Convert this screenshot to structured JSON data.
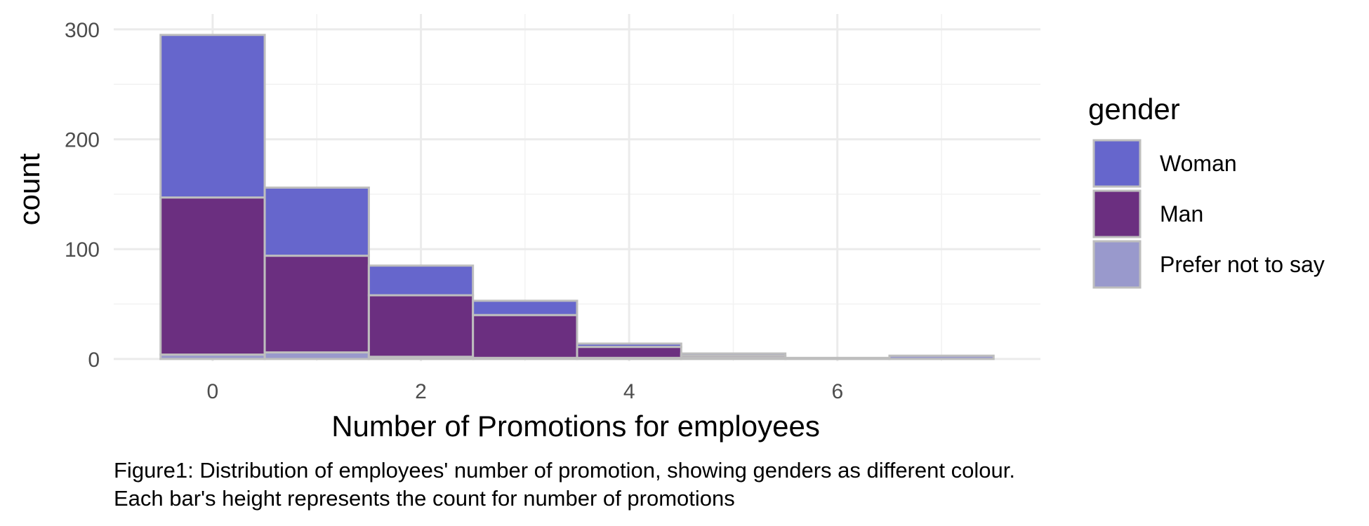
{
  "chart_data": {
    "type": "bar",
    "stacked": true,
    "x": [
      0,
      1,
      2,
      3,
      4,
      5,
      6,
      7
    ],
    "series": [
      {
        "name": "Prefer not to say",
        "color": "#9999cc",
        "values": [
          4,
          6,
          2,
          1,
          1,
          1,
          1,
          3
        ]
      },
      {
        "name": "Man",
        "color": "#6b2f80",
        "values": [
          143,
          88,
          56,
          39,
          10,
          2,
          0,
          0
        ]
      },
      {
        "name": "Woman",
        "color": "#6666cc",
        "values": [
          148,
          62,
          27,
          13,
          3,
          2,
          0,
          0
        ]
      }
    ],
    "xlabel": "Number of Promotions for employees",
    "ylabel": "count",
    "xlim": [
      -0.95,
      7.95
    ],
    "ylim": [
      -2,
      314
    ],
    "x_ticks": [
      "0",
      "2",
      "4",
      "6"
    ],
    "y_ticks": [
      "0",
      "100",
      "200",
      "300"
    ],
    "grid": true,
    "bar_outline_color": "#bebebe",
    "legend": {
      "title": "gender",
      "placement": "right",
      "entries": [
        {
          "label": "Woman",
          "color": "#6666cc"
        },
        {
          "label": "Man",
          "color": "#6b2f80"
        },
        {
          "label": "Prefer not to say",
          "color": "#9999cc"
        }
      ]
    }
  },
  "caption": {
    "line1": "Figure1: Distribution of employees' number of promotion, showing genders as different colour.",
    "line2": "Each bar's height represents the count for number of promotions"
  }
}
